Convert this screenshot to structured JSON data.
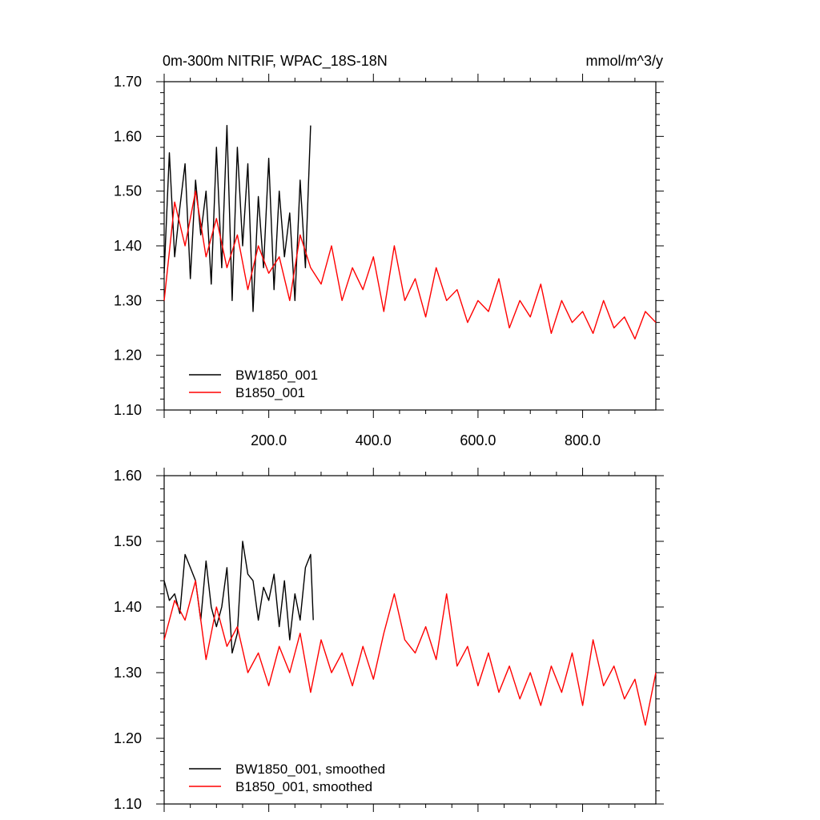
{
  "chart_data": [
    {
      "type": "line",
      "title": "0m-300m NITRIF, WPAC_18S-18N",
      "units": "mmol/m^3/y",
      "xlim": [
        0,
        940
      ],
      "ylim": [
        1.1,
        1.7
      ],
      "yticks": [
        "1.10",
        "1.20",
        "1.30",
        "1.40",
        "1.50",
        "1.60",
        "1.70"
      ],
      "xticks": [
        "200.0",
        "400.0",
        "600.0",
        "800.0"
      ],
      "legend": "bottom-left",
      "series": [
        {
          "name": "BW1850_001",
          "color": "#000000",
          "x": [
            0,
            10,
            20,
            30,
            40,
            50,
            60,
            70,
            80,
            90,
            100,
            110,
            120,
            130,
            140,
            150,
            160,
            170,
            180,
            190,
            200,
            210,
            220,
            230,
            240,
            250,
            260,
            270,
            280
          ],
          "values": [
            1.35,
            1.57,
            1.38,
            1.47,
            1.55,
            1.34,
            1.52,
            1.42,
            1.5,
            1.33,
            1.58,
            1.36,
            1.62,
            1.3,
            1.58,
            1.4,
            1.55,
            1.28,
            1.49,
            1.36,
            1.56,
            1.32,
            1.5,
            1.38,
            1.46,
            1.3,
            1.52,
            1.36,
            1.62
          ]
        },
        {
          "name": "B1850_001",
          "color": "#ff0000",
          "x": [
            0,
            20,
            40,
            60,
            80,
            100,
            120,
            140,
            160,
            180,
            200,
            220,
            240,
            260,
            280,
            300,
            320,
            340,
            360,
            380,
            400,
            420,
            440,
            460,
            480,
            500,
            520,
            540,
            560,
            580,
            600,
            620,
            640,
            660,
            680,
            700,
            720,
            740,
            760,
            780,
            800,
            820,
            840,
            860,
            880,
            900,
            920,
            940
          ],
          "values": [
            1.3,
            1.48,
            1.4,
            1.5,
            1.38,
            1.45,
            1.36,
            1.42,
            1.32,
            1.4,
            1.35,
            1.38,
            1.3,
            1.42,
            1.36,
            1.33,
            1.4,
            1.3,
            1.36,
            1.32,
            1.38,
            1.28,
            1.4,
            1.3,
            1.34,
            1.27,
            1.36,
            1.3,
            1.32,
            1.26,
            1.3,
            1.28,
            1.34,
            1.25,
            1.3,
            1.27,
            1.33,
            1.24,
            1.3,
            1.26,
            1.28,
            1.24,
            1.3,
            1.25,
            1.27,
            1.23,
            1.28,
            1.26
          ]
        }
      ]
    },
    {
      "type": "line",
      "title": "",
      "xlim": [
        0,
        940
      ],
      "ylim": [
        1.1,
        1.6
      ],
      "yticks": [
        "1.10",
        "1.20",
        "1.30",
        "1.40",
        "1.50",
        "1.60"
      ],
      "legend": "bottom-left",
      "series": [
        {
          "name": "BW1850_001, smoothed",
          "color": "#000000",
          "x": [
            0,
            10,
            20,
            30,
            40,
            50,
            60,
            70,
            80,
            90,
            100,
            110,
            120,
            130,
            140,
            150,
            160,
            170,
            180,
            190,
            200,
            210,
            220,
            230,
            240,
            250,
            260,
            270,
            280,
            285
          ],
          "values": [
            1.44,
            1.41,
            1.42,
            1.39,
            1.48,
            1.46,
            1.44,
            1.38,
            1.47,
            1.4,
            1.37,
            1.4,
            1.46,
            1.33,
            1.36,
            1.5,
            1.45,
            1.44,
            1.38,
            1.43,
            1.41,
            1.45,
            1.37,
            1.44,
            1.35,
            1.42,
            1.38,
            1.46,
            1.48,
            1.38
          ]
        },
        {
          "name": "B1850_001, smoothed",
          "color": "#ff0000",
          "x": [
            0,
            20,
            40,
            60,
            80,
            100,
            120,
            140,
            160,
            180,
            200,
            220,
            240,
            260,
            280,
            300,
            320,
            340,
            360,
            380,
            400,
            420,
            440,
            460,
            480,
            500,
            520,
            540,
            560,
            580,
            600,
            620,
            640,
            660,
            680,
            700,
            720,
            740,
            760,
            780,
            800,
            820,
            840,
            860,
            880,
            900,
            920,
            940
          ],
          "values": [
            1.35,
            1.41,
            1.38,
            1.44,
            1.32,
            1.4,
            1.34,
            1.37,
            1.3,
            1.33,
            1.28,
            1.34,
            1.3,
            1.36,
            1.27,
            1.35,
            1.3,
            1.33,
            1.28,
            1.34,
            1.29,
            1.36,
            1.42,
            1.35,
            1.33,
            1.37,
            1.32,
            1.42,
            1.31,
            1.34,
            1.28,
            1.33,
            1.27,
            1.31,
            1.26,
            1.3,
            1.25,
            1.31,
            1.27,
            1.33,
            1.25,
            1.35,
            1.28,
            1.31,
            1.26,
            1.29,
            1.22,
            1.3
          ]
        }
      ]
    }
  ]
}
